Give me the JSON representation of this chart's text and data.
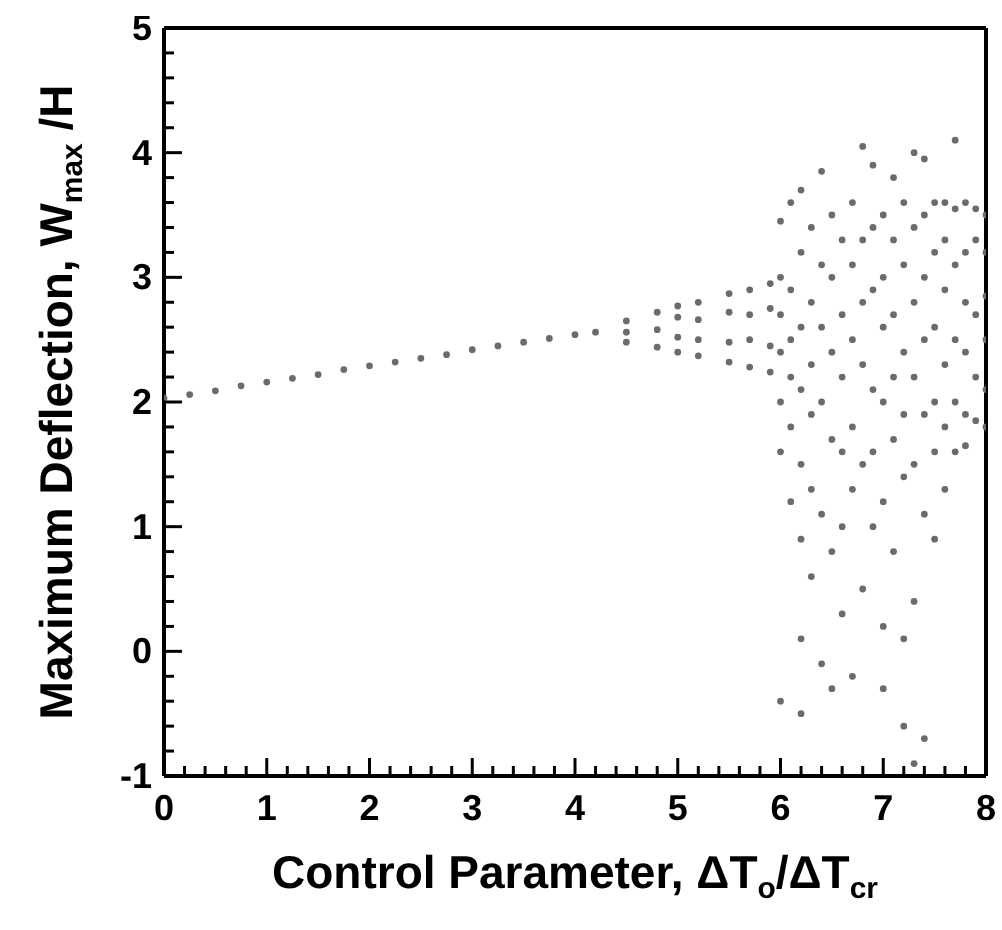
{
  "chart_data": {
    "type": "scatter",
    "xlabel": "Control Parameter, ΔT$_{o}$/ΔT$_{cr}$",
    "ylabel": "Maximum Deflection, W$_{max}$ /H",
    "xlim": [
      0,
      8
    ],
    "ylim": [
      -1,
      5
    ],
    "xticks": [
      0,
      {
        "value": 0.2,
        "label": null
      },
      {
        "value": 0.4,
        "label": null
      },
      {
        "value": 0.6,
        "label": null
      },
      {
        "value": 0.8,
        "label": null
      },
      1,
      {
        "value": 1.2,
        "label": null
      },
      {
        "value": 1.4,
        "label": null
      },
      {
        "value": 1.6,
        "label": null
      },
      {
        "value": 1.8,
        "label": null
      },
      2,
      {
        "value": 2.2,
        "label": null
      },
      {
        "value": 2.4,
        "label": null
      },
      {
        "value": 2.6,
        "label": null
      },
      {
        "value": 2.8,
        "label": null
      },
      3,
      {
        "value": 3.2,
        "label": null
      },
      {
        "value": 3.4,
        "label": null
      },
      {
        "value": 3.6,
        "label": null
      },
      {
        "value": 3.8,
        "label": null
      },
      4,
      {
        "value": 4.2,
        "label": null
      },
      {
        "value": 4.4,
        "label": null
      },
      {
        "value": 4.6,
        "label": null
      },
      {
        "value": 4.8,
        "label": null
      },
      5,
      {
        "value": 5.2,
        "label": null
      },
      {
        "value": 5.4,
        "label": null
      },
      {
        "value": 5.6,
        "label": null
      },
      {
        "value": 5.8,
        "label": null
      },
      6,
      {
        "value": 6.2,
        "label": null
      },
      {
        "value": 6.4,
        "label": null
      },
      {
        "value": 6.6,
        "label": null
      },
      {
        "value": 6.8,
        "label": null
      },
      7,
      {
        "value": 7.2,
        "label": null
      },
      {
        "value": 7.4,
        "label": null
      },
      {
        "value": 7.6,
        "label": null
      },
      {
        "value": 7.8,
        "label": null
      },
      8
    ],
    "yticks": [
      -1,
      {
        "value": -0.8,
        "label": null
      },
      {
        "value": -0.6,
        "label": null
      },
      {
        "value": -0.4,
        "label": null
      },
      {
        "value": -0.2,
        "label": null
      },
      0,
      {
        "value": 0.2,
        "label": null
      },
      {
        "value": 0.4,
        "label": null
      },
      {
        "value": 0.6,
        "label": null
      },
      {
        "value": 0.8,
        "label": null
      },
      1,
      {
        "value": 1.2,
        "label": null
      },
      {
        "value": 1.4,
        "label": null
      },
      {
        "value": 1.6,
        "label": null
      },
      {
        "value": 1.8,
        "label": null
      },
      2,
      {
        "value": 2.2,
        "label": null
      },
      {
        "value": 2.4,
        "label": null
      },
      {
        "value": 2.6,
        "label": null
      },
      {
        "value": 2.8,
        "label": null
      },
      3,
      {
        "value": 3.2,
        "label": null
      },
      {
        "value": 3.4,
        "label": null
      },
      {
        "value": 3.6,
        "label": null
      },
      {
        "value": 3.8,
        "label": null
      },
      4,
      {
        "value": 4.2,
        "label": null
      },
      {
        "value": 4.4,
        "label": null
      },
      {
        "value": 4.6,
        "label": null
      },
      {
        "value": 4.8,
        "label": null
      },
      5
    ],
    "grid": false,
    "legend": false,
    "marker": "circle",
    "series": [
      {
        "color": "#6b6b6b",
        "x": [
          0,
          0.25,
          0.5,
          0.75,
          1,
          1.25,
          1.5,
          1.75,
          2,
          2.25,
          2.5,
          2.75,
          3,
          3.25,
          3.5,
          3.75,
          4,
          4.2,
          4.5,
          4.5,
          4.5,
          4.8,
          4.8,
          4.8,
          5,
          5,
          5,
          5,
          5.2,
          5.2,
          5.2,
          5.2,
          5.5,
          5.5,
          5.5,
          5.5,
          5.7,
          5.7,
          5.7,
          5.7,
          5.9,
          5.9,
          5.9,
          5.9,
          6,
          6,
          6,
          6,
          6,
          6,
          6,
          6.1,
          6.1,
          6.1,
          6.1,
          6.1,
          6.1,
          6.2,
          6.2,
          6.2,
          6.2,
          6.2,
          6.2,
          6.2,
          6.2,
          6.3,
          6.3,
          6.3,
          6.3,
          6.3,
          6.3,
          6.4,
          6.4,
          6.4,
          6.4,
          6.4,
          6.4,
          6.5,
          6.5,
          6.5,
          6.5,
          6.5,
          6.5,
          6.6,
          6.6,
          6.6,
          6.6,
          6.6,
          6.6,
          6.7,
          6.7,
          6.7,
          6.7,
          6.7,
          6.7,
          6.8,
          6.8,
          6.8,
          6.8,
          6.8,
          6.8,
          6.9,
          6.9,
          6.9,
          6.9,
          6.9,
          6.9,
          7,
          7,
          7,
          7,
          7,
          7,
          7,
          7.1,
          7.1,
          7.1,
          7.1,
          7.1,
          7.1,
          7.2,
          7.2,
          7.2,
          7.2,
          7.2,
          7.2,
          7.2,
          7.3,
          7.3,
          7.3,
          7.3,
          7.3,
          7.3,
          7.3,
          7.4,
          7.4,
          7.4,
          7.4,
          7.4,
          7.4,
          7.4,
          7.5,
          7.5,
          7.5,
          7.5,
          7.5,
          7.5,
          7.6,
          7.6,
          7.6,
          7.6,
          7.6,
          7.6,
          7.7,
          7.7,
          7.7,
          7.7,
          7.7,
          7.7,
          7.8,
          7.8,
          7.8,
          7.8,
          7.8,
          7.8,
          7.9,
          7.9,
          7.9,
          7.9,
          7.9,
          8,
          8,
          8,
          8,
          8,
          8
        ],
        "values": [
          2.03,
          2.06,
          2.09,
          2.13,
          2.16,
          2.19,
          2.22,
          2.26,
          2.29,
          2.32,
          2.35,
          2.38,
          2.42,
          2.45,
          2.48,
          2.51,
          2.54,
          2.56,
          2.65,
          2.56,
          2.48,
          2.72,
          2.58,
          2.44,
          2.77,
          2.68,
          2.52,
          2.4,
          2.8,
          2.66,
          2.5,
          2.37,
          2.87,
          2.72,
          2.48,
          2.32,
          2.9,
          2.7,
          2.5,
          2.28,
          2.95,
          2.75,
          2.45,
          2.24,
          3.45,
          3,
          2.7,
          2.4,
          2,
          1.6,
          -0.4,
          3.6,
          2.9,
          2.5,
          2.2,
          1.8,
          1.2,
          3.7,
          3.2,
          2.6,
          2.1,
          1.5,
          0.9,
          0.1,
          -0.5,
          3.4,
          2.8,
          2.3,
          1.9,
          1.3,
          0.6,
          3.85,
          3.1,
          2.6,
          2,
          1.1,
          -0.1,
          3.5,
          3,
          2.4,
          1.7,
          0.8,
          -0.3,
          3.3,
          2.7,
          2.2,
          1.6,
          1,
          0.3,
          3.6,
          3.1,
          2.5,
          1.8,
          1.3,
          -0.2,
          4.05,
          3.3,
          2.8,
          2.3,
          1.5,
          0.5,
          3.9,
          3.4,
          2.9,
          2.1,
          1.6,
          1,
          3.5,
          3,
          2.6,
          2,
          1.2,
          0.2,
          -0.3,
          3.8,
          3.3,
          2.7,
          2.2,
          1.7,
          0.8,
          3.6,
          3.1,
          2.4,
          1.9,
          1.4,
          0.1,
          -0.6,
          4,
          3.4,
          2.8,
          2.2,
          1.5,
          0.4,
          -0.9,
          3.95,
          3.5,
          3,
          2.5,
          1.9,
          1.1,
          -0.7,
          3.6,
          3.2,
          2.6,
          2,
          1.6,
          0.9,
          3.6,
          3.3,
          2.9,
          2.3,
          1.8,
          1.3,
          4.1,
          3.55,
          3.1,
          2.5,
          2,
          1.6,
          3.6,
          3.2,
          2.8,
          2.4,
          1.9,
          1.65,
          3.55,
          3.3,
          2.7,
          2.2,
          1.85,
          3.5,
          3.2,
          2.85,
          2.5,
          2.1,
          1.8
        ]
      }
    ]
  }
}
